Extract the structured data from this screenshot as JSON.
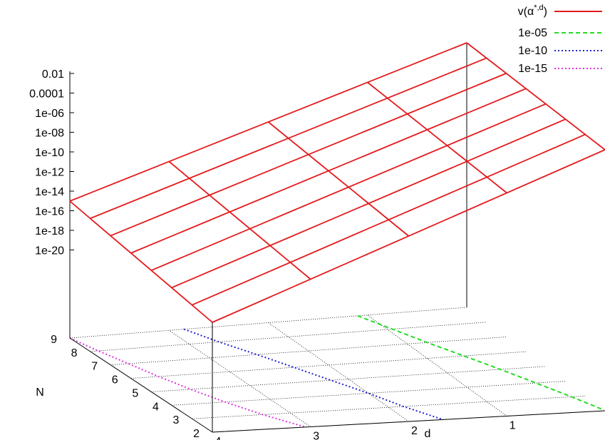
{
  "chart_data": {
    "type": "surface",
    "title": "",
    "xlabel": "d",
    "ylabel": "N",
    "zlabel": "",
    "x_ticks": [
      "4",
      "3",
      "2",
      "1"
    ],
    "y_ticks": [
      "2",
      "3",
      "4",
      "5",
      "6",
      "7",
      "8",
      "9"
    ],
    "z_ticks": [
      "1e-20",
      "1e-18",
      "1e-16",
      "1e-14",
      "1e-12",
      "1e-10",
      "1e-08",
      "1e-06",
      "0.0001",
      "0.01"
    ],
    "z_scale": "log",
    "legend_position": "top-right",
    "legend": [
      {
        "label_main": "v(α",
        "label_sup": "*,d",
        "label_end": ")",
        "color": "#e41a1c",
        "dash": "solid"
      },
      {
        "label": "1e-05",
        "color": "#22dd22",
        "dash": "dashed"
      },
      {
        "label": "1e-10",
        "color": "#2222cc",
        "dash": "dotted"
      },
      {
        "label": "1e-15",
        "color": "#dd33dd",
        "dash": "dotted"
      }
    ],
    "surface": {
      "name": "v(α*,d)",
      "d_values": [
        4,
        3,
        2,
        1,
        0
      ],
      "N_values": [
        2,
        3,
        4,
        5,
        6,
        7,
        8,
        9
      ],
      "grid_columns": [
        0,
        1,
        2,
        3,
        4
      ],
      "grid_rows": [
        0,
        1,
        2,
        3,
        4,
        5,
        6,
        7
      ]
    },
    "contours": [
      {
        "level": "1e-05",
        "color": "#22dd22",
        "points": [
          [
            1.1,
            9
          ],
          [
            0.95,
            8
          ],
          [
            0.8,
            7
          ],
          [
            0.63,
            6
          ],
          [
            0.46,
            5
          ],
          [
            0.3,
            4
          ],
          [
            0.14,
            3
          ],
          [
            0.0,
            2.05
          ]
        ]
      },
      {
        "level": "1e-10",
        "color": "#2222cc",
        "points": [
          [
            2.85,
            9
          ],
          [
            2.7,
            8
          ],
          [
            2.52,
            7
          ],
          [
            2.35,
            6
          ],
          [
            2.18,
            5
          ],
          [
            2.0,
            4
          ],
          [
            1.85,
            3
          ],
          [
            1.65,
            2
          ]
        ]
      },
      {
        "level": "1e-15",
        "color": "#dd33dd",
        "points": [
          [
            4.0,
            9
          ],
          [
            3.92,
            8
          ],
          [
            3.82,
            7
          ],
          [
            3.72,
            6
          ],
          [
            3.6,
            5
          ],
          [
            3.46,
            4
          ],
          [
            3.28,
            3
          ],
          [
            3.05,
            2
          ]
        ]
      }
    ]
  }
}
